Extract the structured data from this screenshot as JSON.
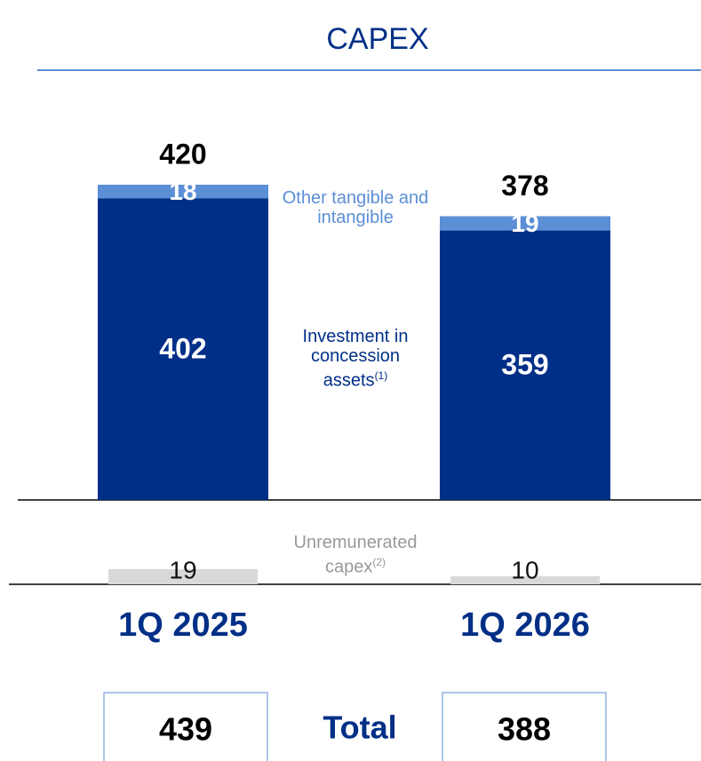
{
  "chart_data": {
    "type": "stacked_bar",
    "title": "CAPEX",
    "categories": [
      "1Q 2025",
      "1Q 2026"
    ],
    "series": [
      {
        "name": "Investment in concession assets",
        "footnote": "(1)",
        "color": "#002f87",
        "values": [
          402,
          359
        ]
      },
      {
        "name": "Other tangible and intangible",
        "color": "#5b8fd6",
        "values": [
          18,
          19
        ]
      }
    ],
    "totals": [
      420,
      378
    ],
    "unremunerated": {
      "name": "Unremunerated capex",
      "footnote": "(2)",
      "color": "#d9d9d9",
      "values": [
        19,
        10
      ]
    },
    "grand_total": {
      "label": "Total",
      "values": [
        439,
        388
      ]
    }
  }
}
